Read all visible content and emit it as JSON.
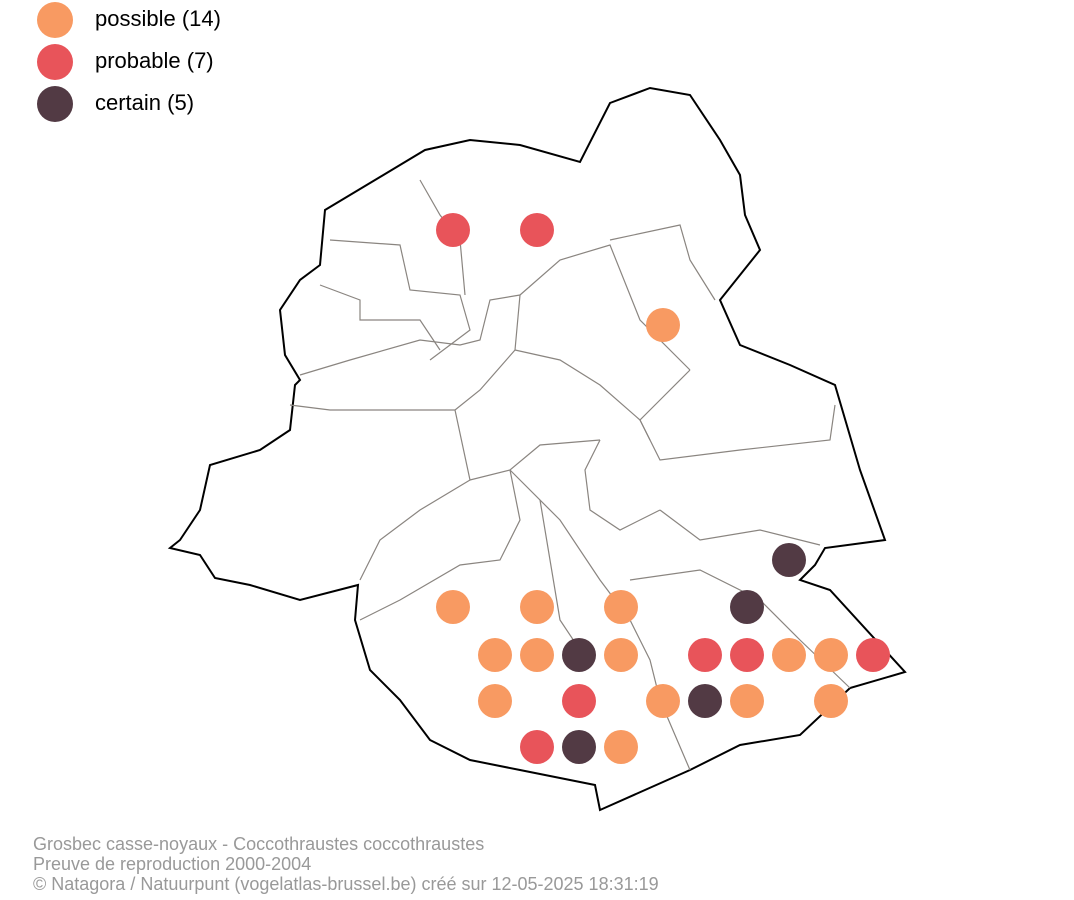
{
  "legend": {
    "items": [
      {
        "label": "possible (14)"
      },
      {
        "label": "probable (7)"
      },
      {
        "label": "certain (5)"
      }
    ]
  },
  "caption": {
    "lines": [
      "Grosbec casse-noyaux - Coccothraustes coccothraustes",
      "Preuve de reproduction 2000-2004",
      "© Natagora / Natuurpunt (vogelatlas-brussel.be) créé sur 12-05-2025 18:31:19"
    ]
  }
}
